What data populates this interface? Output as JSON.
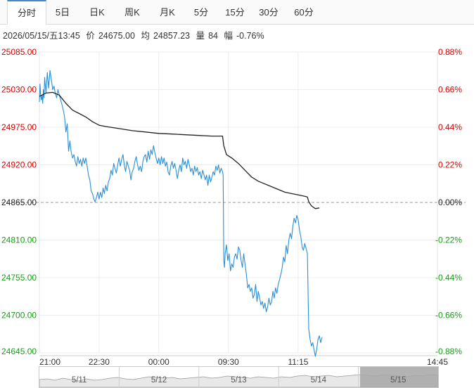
{
  "tabs": [
    {
      "label": "分时",
      "active": true
    },
    {
      "label": "5日"
    },
    {
      "label": "日K"
    },
    {
      "label": "周K"
    },
    {
      "label": "月K"
    },
    {
      "label": "5分"
    },
    {
      "label": "15分"
    },
    {
      "label": "30分"
    },
    {
      "label": "60分"
    }
  ],
  "info": {
    "datetime": "2026/05/15/五13:45",
    "price_label": "价",
    "price": "24675.00",
    "avg_label": "均",
    "avg": "24857.23",
    "volume_label": "量",
    "volume": "84",
    "change_label": "幅",
    "change": "-0.76%"
  },
  "colors": {
    "up": "#d40000",
    "down": "#1a9c1a",
    "neutral": "#222222",
    "price_line": "#2a8fd6",
    "avg_line": "#222222"
  },
  "chart_data": {
    "type": "line",
    "reference_price": 24865,
    "ylim": [
      24645,
      25085
    ],
    "y_ticks": [
      "25085.00",
      "25030.00",
      "24975.00",
      "24920.00",
      "24865.00",
      "24810.00",
      "24755.00",
      "24700.00",
      "24645.00"
    ],
    "pct_ticks": [
      "0.88%",
      "0.66%",
      "0.44%",
      "0.22%",
      "0.00%",
      "-0.22%",
      "-0.44%",
      "-0.66%",
      "-0.88%"
    ],
    "x_ticks": [
      "21:00",
      "22:30",
      "00:00",
      "09:30",
      "11:15",
      "14:45"
    ],
    "x_tick_index": [
      0,
      90,
      180,
      285,
      390,
      600
    ],
    "x_total": 600,
    "series": [
      {
        "values": [
          [
            0,
            25012
          ],
          [
            1,
            25038
          ],
          [
            2,
            25020
          ],
          [
            3,
            25015
          ],
          [
            4,
            25022
          ],
          [
            5,
            25010
          ],
          [
            6,
            25030
          ],
          [
            7,
            25018
          ],
          [
            8,
            25048
          ],
          [
            10,
            25025
          ],
          [
            12,
            25055
          ],
          [
            14,
            25032
          ],
          [
            16,
            25058
          ],
          [
            18,
            25045
          ],
          [
            20,
            25030
          ],
          [
            22,
            25035
          ],
          [
            24,
            25025
          ],
          [
            26,
            25018
          ],
          [
            28,
            25030
          ],
          [
            30,
            25022
          ],
          [
            32,
            25015
          ],
          [
            34,
            25008
          ],
          [
            36,
            25000
          ],
          [
            38,
            24990
          ],
          [
            40,
            24968
          ],
          [
            42,
            24980
          ],
          [
            44,
            24940
          ],
          [
            46,
            24955
          ],
          [
            48,
            24938
          ],
          [
            50,
            24930
          ],
          [
            52,
            24935
          ],
          [
            54,
            24925
          ],
          [
            56,
            24918
          ],
          [
            58,
            24932
          ],
          [
            60,
            24922
          ],
          [
            62,
            24928
          ],
          [
            64,
            24918
          ],
          [
            66,
            24930
          ],
          [
            68,
            24922
          ],
          [
            70,
            24930
          ],
          [
            72,
            24918
          ],
          [
            74,
            24905
          ],
          [
            76,
            24898
          ],
          [
            78,
            24882
          ],
          [
            80,
            24878
          ],
          [
            82,
            24870
          ],
          [
            84,
            24866
          ],
          [
            86,
            24872
          ],
          [
            88,
            24880
          ],
          [
            90,
            24870
          ],
          [
            92,
            24880
          ],
          [
            94,
            24872
          ],
          [
            96,
            24886
          ],
          [
            98,
            24878
          ],
          [
            100,
            24890
          ],
          [
            102,
            24882
          ],
          [
            104,
            24895
          ],
          [
            106,
            24900
          ],
          [
            108,
            24912
          ],
          [
            110,
            24905
          ],
          [
            112,
            24922
          ],
          [
            114,
            24915
          ],
          [
            116,
            24908
          ],
          [
            118,
            24920
          ],
          [
            120,
            24930
          ],
          [
            122,
            24918
          ],
          [
            124,
            24928
          ],
          [
            126,
            24935
          ],
          [
            128,
            24920
          ],
          [
            130,
            24910
          ],
          [
            132,
            24925
          ],
          [
            134,
            24918
          ],
          [
            136,
            24912
          ],
          [
            138,
            24898
          ],
          [
            140,
            24910
          ],
          [
            142,
            24915
          ],
          [
            144,
            24925
          ],
          [
            146,
            24932
          ],
          [
            148,
            24920
          ],
          [
            150,
            24912
          ],
          [
            152,
            24918
          ],
          [
            154,
            24910
          ],
          [
            156,
            24925
          ],
          [
            158,
            24932
          ],
          [
            160,
            24935
          ],
          [
            162,
            24924
          ],
          [
            164,
            24940
          ],
          [
            166,
            24928
          ],
          [
            168,
            24942
          ],
          [
            170,
            24935
          ],
          [
            172,
            24948
          ],
          [
            174,
            24938
          ],
          [
            176,
            24930
          ],
          [
            178,
            24922
          ],
          [
            180,
            24930
          ],
          [
            182,
            24920
          ],
          [
            184,
            24932
          ],
          [
            186,
            24922
          ],
          [
            188,
            24930
          ],
          [
            190,
            24918
          ],
          [
            192,
            24924
          ],
          [
            194,
            24910
          ],
          [
            196,
            24905
          ],
          [
            198,
            24918
          ],
          [
            200,
            24925
          ],
          [
            202,
            24915
          ],
          [
            204,
            24922
          ],
          [
            206,
            24912
          ],
          [
            208,
            24900
          ],
          [
            210,
            24912
          ],
          [
            212,
            24920
          ],
          [
            214,
            24910
          ],
          [
            216,
            24930
          ],
          [
            218,
            24920
          ],
          [
            220,
            24925
          ],
          [
            222,
            24915
          ],
          [
            224,
            24928
          ],
          [
            226,
            24920
          ],
          [
            228,
            24910
          ],
          [
            230,
            24915
          ],
          [
            232,
            24905
          ],
          [
            234,
            24918
          ],
          [
            236,
            24910
          ],
          [
            238,
            24916
          ],
          [
            240,
            24905
          ],
          [
            242,
            24910
          ],
          [
            244,
            24900
          ],
          [
            246,
            24912
          ],
          [
            248,
            24906
          ],
          [
            250,
            24898
          ],
          [
            252,
            24905
          ],
          [
            254,
            24890
          ],
          [
            256,
            24905
          ],
          [
            258,
            24895
          ],
          [
            260,
            24902
          ],
          [
            262,
            24910
          ],
          [
            264,
            24905
          ],
          [
            266,
            24918
          ],
          [
            268,
            24912
          ],
          [
            270,
            24920
          ],
          [
            272,
            24908
          ],
          [
            274,
            24915
          ],
          [
            276,
            24910
          ],
          [
            277,
            24905
          ],
          [
            278,
            24780
          ],
          [
            279,
            24770
          ],
          [
            280,
            24790
          ],
          [
            282,
            24803
          ],
          [
            284,
            24780
          ],
          [
            286,
            24790
          ],
          [
            288,
            24765
          ],
          [
            290,
            24775
          ],
          [
            292,
            24770
          ],
          [
            294,
            24785
          ],
          [
            296,
            24790
          ],
          [
            298,
            24782
          ],
          [
            300,
            24800
          ],
          [
            302,
            24795
          ],
          [
            304,
            24780
          ],
          [
            306,
            24770
          ],
          [
            308,
            24790
          ],
          [
            310,
            24775
          ],
          [
            312,
            24760
          ],
          [
            314,
            24740
          ],
          [
            316,
            24745
          ],
          [
            318,
            24735
          ],
          [
            320,
            24740
          ],
          [
            322,
            24725
          ],
          [
            324,
            24730
          ],
          [
            326,
            24745
          ],
          [
            328,
            24720
          ],
          [
            330,
            24735
          ],
          [
            332,
            24725
          ],
          [
            334,
            24715
          ],
          [
            336,
            24720
          ],
          [
            338,
            24710
          ],
          [
            340,
            24718
          ],
          [
            342,
            24705
          ],
          [
            344,
            24712
          ],
          [
            346,
            24725
          ],
          [
            348,
            24715
          ],
          [
            350,
            24720
          ],
          [
            352,
            24735
          ],
          [
            354,
            24725
          ],
          [
            356,
            24740
          ],
          [
            358,
            24732
          ],
          [
            360,
            24745
          ],
          [
            362,
            24752
          ],
          [
            364,
            24760
          ],
          [
            366,
            24770
          ],
          [
            368,
            24785
          ],
          [
            370,
            24778
          ],
          [
            372,
            24802
          ],
          [
            374,
            24790
          ],
          [
            376,
            24810
          ],
          [
            378,
            24820
          ],
          [
            380,
            24812
          ],
          [
            382,
            24830
          ],
          [
            384,
            24842
          ],
          [
            386,
            24835
          ],
          [
            388,
            24846
          ],
          [
            390,
            24840
          ],
          [
            392,
            24825
          ],
          [
            394,
            24815
          ],
          [
            396,
            24800
          ],
          [
            398,
            24795
          ],
          [
            400,
            24805
          ],
          [
            402,
            24798
          ],
          [
            404,
            24790
          ],
          [
            405,
            24730
          ],
          [
            406,
            24680
          ],
          [
            408,
            24665
          ],
          [
            410,
            24655
          ],
          [
            412,
            24660
          ],
          [
            414,
            24650
          ],
          [
            416,
            24640
          ],
          [
            418,
            24650
          ],
          [
            420,
            24665
          ],
          [
            422,
            24670
          ],
          [
            424,
            24660
          ],
          [
            426,
            24668
          ]
        ]
      },
      {
        "values": [
          [
            0,
            25020
          ],
          [
            10,
            25025
          ],
          [
            20,
            25026
          ],
          [
            30,
            25022
          ],
          [
            40,
            25010
          ],
          [
            50,
            25000
          ],
          [
            60,
            24995
          ],
          [
            70,
            24990
          ],
          [
            80,
            24983
          ],
          [
            90,
            24978
          ],
          [
            100,
            24976
          ],
          [
            120,
            24973
          ],
          [
            140,
            24970
          ],
          [
            160,
            24968
          ],
          [
            180,
            24966
          ],
          [
            200,
            24965
          ],
          [
            220,
            24964
          ],
          [
            240,
            24963
          ],
          [
            260,
            24962
          ],
          [
            276,
            24962
          ],
          [
            278,
            24948
          ],
          [
            282,
            24935
          ],
          [
            290,
            24930
          ],
          [
            300,
            24922
          ],
          [
            310,
            24912
          ],
          [
            320,
            24902
          ],
          [
            330,
            24896
          ],
          [
            340,
            24892
          ],
          [
            350,
            24888
          ],
          [
            360,
            24884
          ],
          [
            370,
            24880
          ],
          [
            380,
            24878
          ],
          [
            390,
            24876
          ],
          [
            400,
            24874
          ],
          [
            404,
            24873
          ],
          [
            406,
            24866
          ],
          [
            410,
            24860
          ],
          [
            416,
            24856
          ],
          [
            422,
            24857
          ]
        ]
      }
    ]
  },
  "navigator": {
    "days": [
      "5/11",
      "5/12",
      "5/13",
      "5/14",
      "5/15"
    ]
  }
}
